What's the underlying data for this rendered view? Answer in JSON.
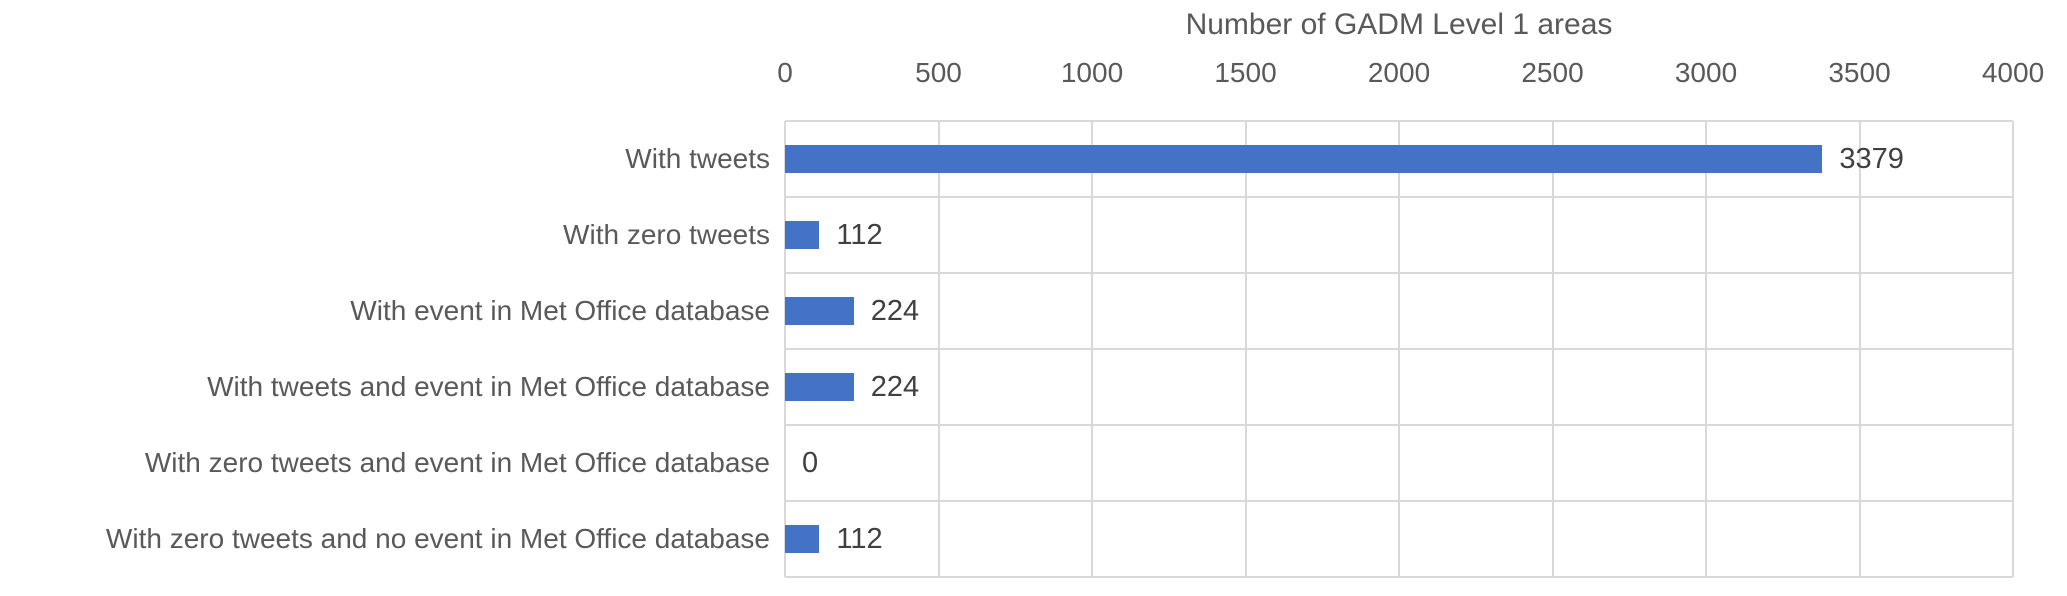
{
  "chart_data": {
    "type": "bar",
    "orientation": "horizontal",
    "title": "Number of GADM Level 1 areas",
    "categories": [
      "With tweets",
      "With zero tweets",
      "With event in Met Office database",
      "With tweets and event in Met Office database",
      "With zero tweets and event in Met Office database",
      "With zero tweets and no event in Met Office database"
    ],
    "values": [
      3379,
      112,
      224,
      224,
      0,
      112
    ],
    "data_labels": [
      "3379",
      "112",
      "224",
      "224",
      "0",
      "112"
    ],
    "xlabel": "",
    "ylabel": "",
    "xlim": [
      0,
      4000
    ],
    "x_ticks": [
      0,
      500,
      1000,
      1500,
      2000,
      2500,
      3000,
      3500,
      4000
    ],
    "grid": true,
    "legend": false,
    "colors": {
      "bar": "#4472C4",
      "grid": "#D9D9D9",
      "axis_text": "#595959",
      "data_label_text": "#404040",
      "background": "#FFFFFF"
    }
  }
}
